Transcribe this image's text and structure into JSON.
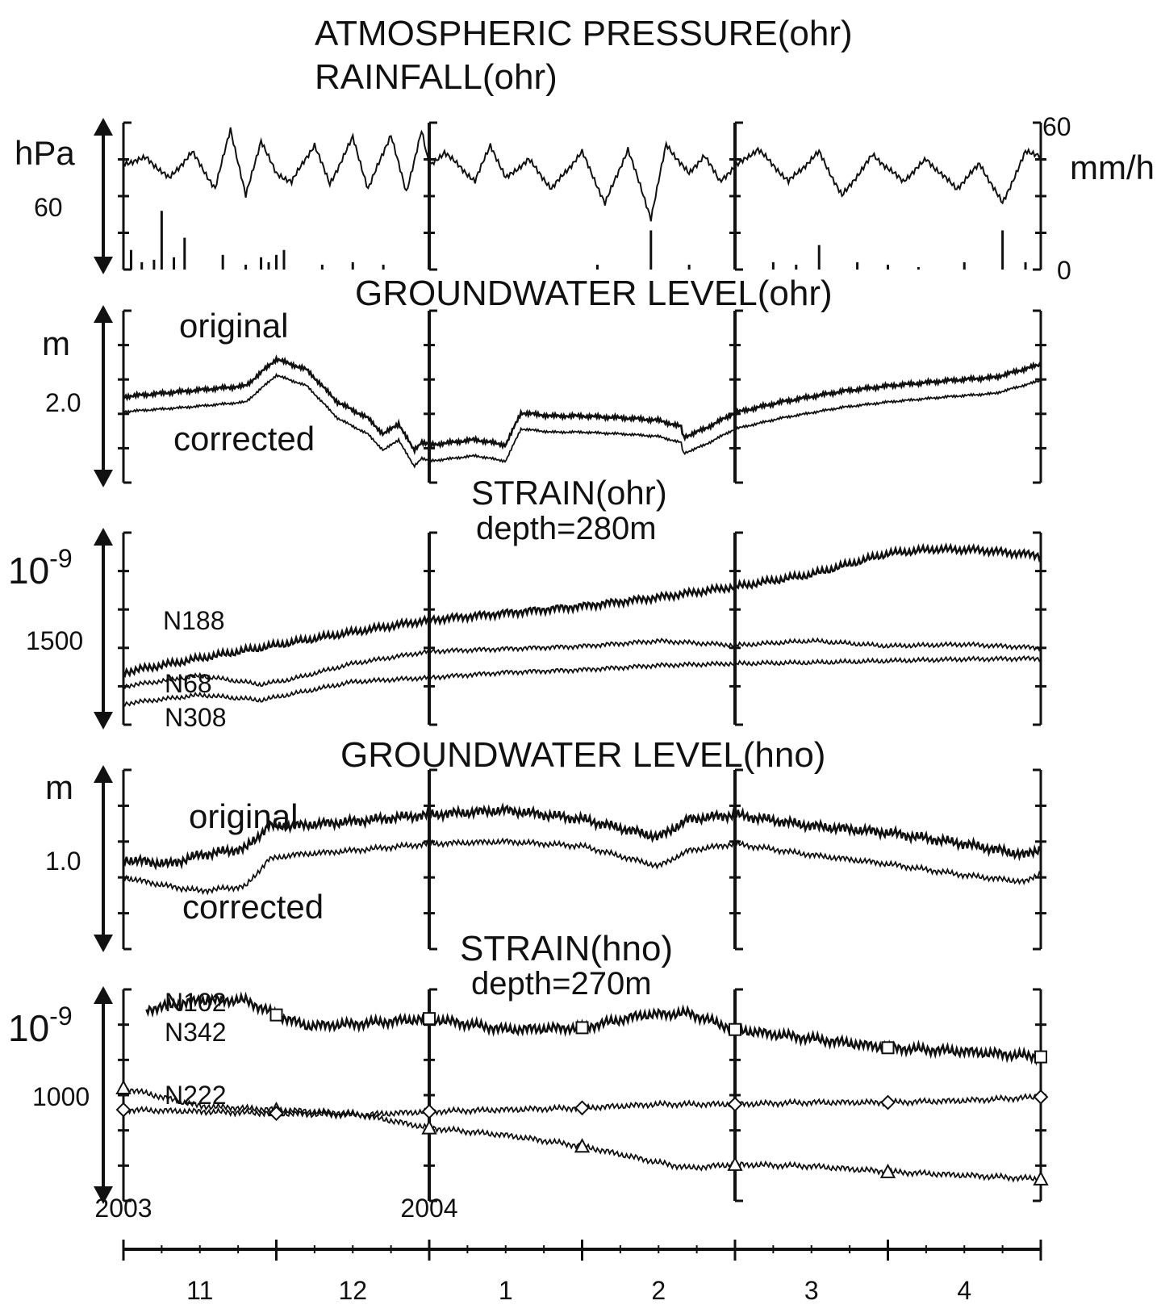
{
  "colors": {
    "ink": "#111111",
    "background": "#ffffff"
  },
  "x_axis": {
    "years": [
      {
        "label": "2003",
        "at": 0
      },
      {
        "label": "2004",
        "at": 2
      }
    ],
    "months": [
      {
        "label": "11",
        "from": 0,
        "to": 1
      },
      {
        "label": "12",
        "from": 1,
        "to": 2
      },
      {
        "label": "1",
        "from": 2,
        "to": 3
      },
      {
        "label": "2",
        "from": 3,
        "to": 4
      },
      {
        "label": "3",
        "from": 4,
        "to": 5
      },
      {
        "label": "4",
        "from": 5,
        "to": 6
      }
    ],
    "unit_note": "x values are months elapsed since 2003-11-01"
  },
  "chart_data": [
    {
      "type": "line",
      "title": "ATMOSPHERIC PRESSURE(ohr)",
      "subtitle": "RAINFALL(ohr)",
      "ylabel": "hPa",
      "ytick_label": "60",
      "y2label": "mm/h",
      "y2ticks": [
        "60",
        "0"
      ],
      "y2lim": [
        0,
        60
      ],
      "series": [
        {
          "kind": "pressure-line",
          "x": [
            0,
            0.15,
            0.3,
            0.45,
            0.6,
            0.7,
            0.8,
            0.9,
            1.0,
            1.1,
            1.25,
            1.35,
            1.5,
            1.6,
            1.75,
            1.85,
            1.95,
            2.0,
            2.1,
            2.3,
            2.4,
            2.5,
            2.65,
            2.8,
            3.0,
            3.15,
            3.3,
            3.45,
            3.55,
            3.7,
            3.8,
            3.9,
            4.0,
            4.15,
            4.35,
            4.55,
            4.7,
            4.9,
            5.1,
            5.25,
            5.45,
            5.6,
            5.75,
            5.9,
            6.0
          ],
          "values": [
            0.72,
            0.76,
            0.62,
            0.8,
            0.55,
            0.96,
            0.5,
            0.88,
            0.65,
            0.6,
            0.85,
            0.58,
            0.9,
            0.55,
            0.92,
            0.52,
            0.95,
            0.7,
            0.8,
            0.6,
            0.85,
            0.62,
            0.75,
            0.55,
            0.8,
            0.45,
            0.82,
            0.35,
            0.85,
            0.65,
            0.78,
            0.6,
            0.7,
            0.82,
            0.6,
            0.8,
            0.5,
            0.78,
            0.6,
            0.75,
            0.55,
            0.72,
            0.45,
            0.8,
            0.78
          ]
        },
        {
          "kind": "rainfall-bars",
          "name": "",
          "x": [
            0.05,
            0.12,
            0.2,
            0.25,
            0.33,
            0.4,
            0.65,
            0.8,
            0.9,
            0.95,
            1.0,
            1.05,
            1.3,
            1.5,
            1.7,
            3.1,
            3.45,
            3.7,
            4.25,
            4.4,
            4.55,
            4.8,
            5.0,
            5.2,
            5.5,
            5.75,
            5.9
          ],
          "values": [
            8,
            3,
            4,
            24,
            5,
            13,
            6,
            2,
            5,
            3,
            6,
            8,
            2,
            3,
            2,
            2,
            16,
            2,
            3,
            2,
            10,
            3,
            2,
            1,
            3,
            16,
            3
          ]
        }
      ]
    },
    {
      "type": "line",
      "title": "GROUNDWATER LEVEL(ohr)",
      "ylabel": "m",
      "ytick_label": "2.0",
      "series": [
        {
          "name": "original",
          "x": [
            0,
            0.4,
            0.8,
            1.0,
            1.2,
            1.4,
            1.6,
            1.7,
            1.8,
            1.9,
            1.95,
            2.0,
            2.3,
            2.5,
            2.6,
            2.8,
            3.0,
            3.3,
            3.5,
            3.65,
            3.66,
            3.8,
            4.0,
            4.3,
            4.7,
            5.0,
            5.4,
            5.7,
            6.0
          ],
          "values": [
            2.1,
            2.15,
            2.2,
            2.45,
            2.35,
            2.05,
            1.9,
            1.75,
            1.85,
            1.6,
            1.68,
            1.65,
            1.7,
            1.65,
            1.95,
            1.92,
            1.92,
            1.9,
            1.88,
            1.82,
            1.72,
            1.8,
            1.95,
            2.05,
            2.15,
            2.2,
            2.25,
            2.28,
            2.4
          ]
        },
        {
          "name": "corrected",
          "x": [
            0,
            0.4,
            0.8,
            1.0,
            1.2,
            1.4,
            1.6,
            1.7,
            1.8,
            1.9,
            1.95,
            2.0,
            2.3,
            2.5,
            2.6,
            2.8,
            3.0,
            3.3,
            3.5,
            3.65,
            3.66,
            3.8,
            4.0,
            4.3,
            4.7,
            5.0,
            5.4,
            5.7,
            6.0
          ],
          "values": [
            1.96,
            2.0,
            2.05,
            2.3,
            2.2,
            1.9,
            1.75,
            1.6,
            1.7,
            1.45,
            1.53,
            1.5,
            1.55,
            1.5,
            1.8,
            1.77,
            1.77,
            1.75,
            1.73,
            1.67,
            1.57,
            1.65,
            1.8,
            1.9,
            2.0,
            2.05,
            2.1,
            2.13,
            2.25
          ]
        }
      ],
      "ylim": [
        1.3,
        2.9
      ]
    },
    {
      "type": "line",
      "title": "STRAIN(ohr)",
      "subtitle": "depth=280m",
      "ylabel": "10-9",
      "ytick_label": "1500",
      "series": [
        {
          "name": "N188",
          "x": [
            0,
            0.5,
            1.0,
            1.5,
            2.0,
            2.5,
            3.0,
            3.5,
            4.0,
            4.5,
            5.0,
            5.3,
            5.6,
            6.0
          ],
          "values": [
            1400,
            1560,
            1710,
            1860,
            2000,
            2080,
            2160,
            2260,
            2380,
            2520,
            2760,
            2810,
            2800,
            2740
          ]
        },
        {
          "name": "N68",
          "x": [
            0,
            0.5,
            0.9,
            1.1,
            1.5,
            2.0,
            2.5,
            3.0,
            3.5,
            4.0,
            4.5,
            5.0,
            5.5,
            6.0
          ],
          "values": [
            1240,
            1360,
            1260,
            1320,
            1500,
            1640,
            1670,
            1700,
            1760,
            1710,
            1760,
            1700,
            1720,
            1680
          ]
        },
        {
          "name": "N308",
          "x": [
            0,
            0.5,
            0.9,
            1.1,
            1.5,
            2.0,
            2.5,
            3.0,
            3.5,
            4.0,
            4.5,
            5.0,
            5.5,
            6.0
          ],
          "values": [
            1040,
            1140,
            1080,
            1150,
            1290,
            1340,
            1400,
            1430,
            1480,
            1500,
            1510,
            1530,
            1550,
            1560
          ]
        }
      ],
      "ylim": [
        800,
        3000
      ]
    },
    {
      "type": "line",
      "title": "GROUNDWATER LEVEL(hno)",
      "ylabel": "m",
      "ytick_label": "1.0",
      "series": [
        {
          "name": "original",
          "x": [
            0,
            0.3,
            0.5,
            0.8,
            0.95,
            1.1,
            1.5,
            2.0,
            2.5,
            3.0,
            3.5,
            3.7,
            4.0,
            4.5,
            5.0,
            5.5,
            5.9,
            6.0
          ],
          "values": [
            1.0,
            0.98,
            1.02,
            1.05,
            1.15,
            1.15,
            1.17,
            1.2,
            1.22,
            1.18,
            1.1,
            1.18,
            1.2,
            1.15,
            1.12,
            1.07,
            1.02,
            1.05
          ]
        },
        {
          "name": "corrected",
          "x": [
            0,
            0.3,
            0.5,
            0.8,
            0.95,
            1.1,
            1.5,
            2.0,
            2.5,
            3.0,
            3.5,
            3.7,
            4.0,
            4.5,
            5.0,
            5.5,
            5.9,
            6.0
          ],
          "values": [
            0.92,
            0.88,
            0.86,
            0.88,
            1.0,
            1.02,
            1.04,
            1.07,
            1.08,
            1.06,
            0.97,
            1.04,
            1.07,
            1.02,
            0.98,
            0.93,
            0.9,
            0.94
          ]
        }
      ],
      "ylim": [
        0.6,
        1.4
      ]
    },
    {
      "type": "line",
      "title": "STRAIN(hno)",
      "subtitle": "depth=270m",
      "ylabel": "10-9",
      "ytick_label": "1000",
      "series": [
        {
          "name": "N102",
          "marker": "square",
          "x": [
            0.15,
            0.5,
            0.8,
            1.0,
            1.2,
            1.5,
            2.0,
            2.5,
            3.0,
            3.4,
            3.7,
            4.0,
            4.5,
            5.0,
            5.5,
            6.0
          ],
          "values": [
            1610,
            1660,
            1660,
            1580,
            1520,
            1530,
            1560,
            1500,
            1510,
            1580,
            1590,
            1500,
            1450,
            1400,
            1380,
            1350
          ],
          "marker_x": [
            1.0,
            2.0,
            3.0,
            4.0,
            5.0,
            6.0
          ]
        },
        {
          "name": "N342",
          "marker": "triangle",
          "x": [
            0,
            0.5,
            1.0,
            1.5,
            2.0,
            2.5,
            3.0,
            3.5,
            3.7,
            4.0,
            4.5,
            5.0,
            5.5,
            6.0
          ],
          "values": [
            1180,
            1080,
            1060,
            1040,
            960,
            920,
            860,
            770,
            740,
            760,
            750,
            720,
            700,
            680
          ],
          "marker_x": [
            0,
            1.0,
            2.0,
            3.0,
            4.0,
            5.0,
            6.0
          ]
        },
        {
          "name": "N222",
          "marker": "diamond",
          "x": [
            0,
            0.5,
            1.0,
            1.5,
            2.0,
            2.5,
            3.0,
            3.5,
            4.0,
            4.5,
            5.0,
            5.5,
            6.0
          ],
          "values": [
            1060,
            1050,
            1040,
            1030,
            1050,
            1060,
            1070,
            1090,
            1090,
            1100,
            1100,
            1110,
            1130
          ],
          "marker_x": [
            0,
            1.0,
            2.0,
            3.0,
            4.0,
            5.0,
            6.0
          ]
        }
      ],
      "ylim": [
        560,
        1720
      ]
    }
  ]
}
